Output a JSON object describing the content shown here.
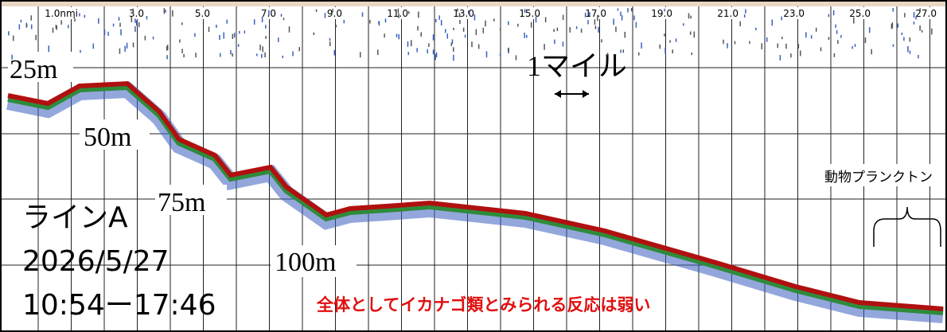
{
  "distance_labels": [
    "1.0nmi",
    "3.0",
    "5.0",
    "7.0",
    "9.0",
    "11.0",
    "13.0",
    "15.0",
    "17.0",
    "19.0",
    "21.0",
    "23.0",
    "25.0",
    "27.0"
  ],
  "depth_labels": [
    "25m",
    "50m",
    "75m",
    "100m"
  ],
  "scale_label": "1マイル",
  "line_info": {
    "name": "ラインA",
    "date": "2026/5/27",
    "time": "10:54ー17:46"
  },
  "annotation": "全体としてイカナゴ類とみられる反応は弱い",
  "plankton_label": "動物プランクトン"
}
